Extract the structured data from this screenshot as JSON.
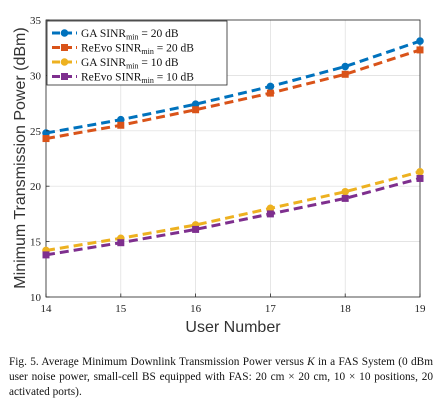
{
  "chart_data": {
    "type": "line",
    "xlabel": "User Number",
    "ylabel": "Minimum Transmission Power (dBm)",
    "xlim": [
      14,
      19
    ],
    "ylim": [
      10,
      35
    ],
    "x_ticks": [
      "14",
      "15",
      "16",
      "17",
      "18",
      "19"
    ],
    "y_ticks": [
      "10",
      "15",
      "20",
      "25",
      "30",
      "35"
    ],
    "grid": true,
    "legend_position": "top-left",
    "x": [
      14,
      15,
      16,
      17,
      18,
      19
    ],
    "series": [
      {
        "name": "GA SINR_min = 20 dB",
        "legend_main": "GA SINR",
        "legend_sub": "min",
        "legend_rest": " = 20 dB",
        "color": "#0072BD",
        "marker": "circle",
        "values": [
          24.8,
          26.0,
          27.4,
          29.0,
          30.8,
          33.1
        ]
      },
      {
        "name": "ReEvo SINR_min = 20 dB",
        "legend_main": "ReEvo SINR",
        "legend_sub": "min",
        "legend_rest": " = 20 dB",
        "color": "#D95319",
        "marker": "square",
        "values": [
          24.3,
          25.5,
          26.9,
          28.4,
          30.1,
          32.3
        ]
      },
      {
        "name": "GA SINR_min = 10 dB",
        "legend_main": "GA SINR",
        "legend_sub": "min",
        "legend_rest": " = 10 dB",
        "color": "#EDB120",
        "marker": "circle",
        "values": [
          14.2,
          15.3,
          16.5,
          18.0,
          19.5,
          21.3
        ]
      },
      {
        "name": "ReEvo SINR_min = 10 dB",
        "legend_main": "ReEvo SINR",
        "legend_sub": "min",
        "legend_rest": " = 10 dB",
        "color": "#7E2F8E",
        "marker": "square",
        "values": [
          13.8,
          14.9,
          16.1,
          17.5,
          18.9,
          20.7
        ]
      }
    ]
  },
  "caption": {
    "label": "Fig. 5.",
    "text_before_k": " Average Minimum Downlink Transmission Power versus ",
    "k": "K",
    "text_after_k": " in a FAS System (0 dBm user noise power, small-cell BS equipped with FAS: 20 cm × 20 cm, 10 × 10 positions, 20 activated ports)."
  }
}
